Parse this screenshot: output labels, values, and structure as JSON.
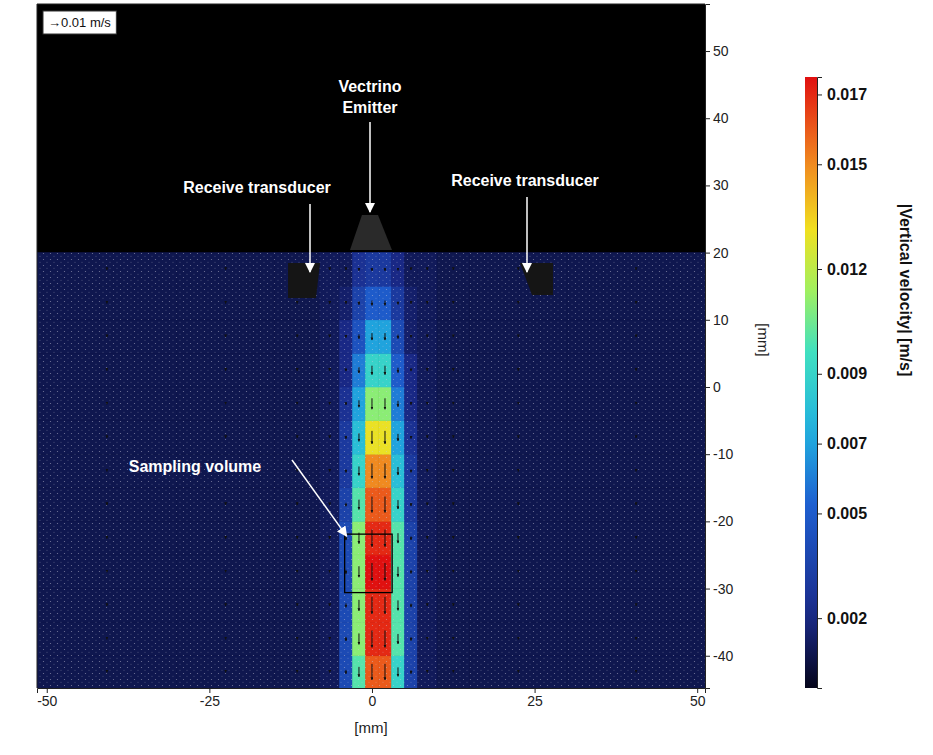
{
  "chart_data": {
    "type": "heatmap",
    "x_label": "[mm]",
    "y_label": "[mm]",
    "xlim": [
      -51.5,
      51.2
    ],
    "ylim": [
      -44.8,
      57
    ],
    "xticks": [
      -50,
      -25,
      0,
      25,
      50
    ],
    "yticks": [
      -40,
      -30,
      -20,
      -10,
      0,
      10,
      20,
      30,
      40,
      50
    ],
    "x_edges": [
      -51.5,
      -30,
      -15,
      -8,
      -5,
      -3,
      -1,
      1,
      3,
      5,
      7,
      10,
      15,
      30,
      51.2
    ],
    "y_edges": [
      -44.8,
      -40,
      -35,
      -30,
      -25,
      -20,
      -15,
      -10,
      -5,
      0,
      5,
      10,
      15,
      20,
      57
    ],
    "cells": [
      [
        0.001,
        0.001,
        0.001,
        0.0012,
        0.004,
        0.01,
        0.016,
        0.016,
        0.009,
        0.0035,
        0.0012,
        0.001,
        0.001,
        0.001
      ],
      [
        0.001,
        0.001,
        0.001,
        0.0012,
        0.004,
        0.011,
        0.017,
        0.017,
        0.01,
        0.0035,
        0.0012,
        0.001,
        0.001,
        0.001
      ],
      [
        0.001,
        0.001,
        0.001,
        0.0012,
        0.004,
        0.011,
        0.017,
        0.017,
        0.01,
        0.0035,
        0.0012,
        0.001,
        0.001,
        0.001
      ],
      [
        0.001,
        0.001,
        0.001,
        0.0012,
        0.004,
        0.011,
        0.0175,
        0.0175,
        0.01,
        0.0035,
        0.0012,
        0.001,
        0.001,
        0.001
      ],
      [
        0.001,
        0.001,
        0.001,
        0.0012,
        0.004,
        0.011,
        0.017,
        0.017,
        0.01,
        0.0035,
        0.0012,
        0.001,
        0.001,
        0.001
      ],
      [
        0.001,
        0.001,
        0.001,
        0.0012,
        0.0035,
        0.01,
        0.016,
        0.016,
        0.009,
        0.003,
        0.0012,
        0.001,
        0.001,
        0.001
      ],
      [
        0.001,
        0.001,
        0.001,
        0.0012,
        0.003,
        0.009,
        0.015,
        0.015,
        0.008,
        0.003,
        0.0012,
        0.001,
        0.001,
        0.001
      ],
      [
        0.001,
        0.001,
        0.001,
        0.0012,
        0.003,
        0.008,
        0.013,
        0.013,
        0.007,
        0.0025,
        0.0012,
        0.001,
        0.001,
        0.001
      ],
      [
        0.001,
        0.001,
        0.001,
        0.0012,
        0.0025,
        0.007,
        0.011,
        0.011,
        0.006,
        0.002,
        0.0012,
        0.001,
        0.001,
        0.001
      ],
      [
        0.001,
        0.001,
        0.001,
        0.0012,
        0.002,
        0.006,
        0.009,
        0.009,
        0.005,
        0.002,
        0.0012,
        0.001,
        0.001,
        0.001
      ],
      [
        0.001,
        0.001,
        0.001,
        0.0012,
        0.002,
        0.0045,
        0.007,
        0.007,
        0.004,
        0.0015,
        0.0012,
        0.001,
        0.001,
        0.001
      ],
      [
        0.001,
        0.001,
        0.001,
        0.0012,
        0.0015,
        0.0035,
        0.005,
        0.005,
        0.003,
        0.0015,
        0.0012,
        0.001,
        0.001,
        0.001
      ],
      [
        0.001,
        0.001,
        0.001,
        0.0012,
        0.0012,
        0.0025,
        0.003,
        0.003,
        0.002,
        0.0012,
        0.0012,
        0.001,
        0.001,
        0.001
      ],
      [
        null,
        null,
        null,
        null,
        null,
        null,
        null,
        null,
        null,
        null,
        null,
        null,
        null,
        null
      ]
    ],
    "colorbar": {
      "label": "|Vertical velocity| [m/s]",
      "range": [
        0,
        0.0175
      ],
      "ticks": [
        0.002,
        0.005,
        0.007,
        0.009,
        0.012,
        0.015,
        0.017
      ]
    },
    "vector_scale": {
      "value": 0.01,
      "label": "→0.01 m/s"
    },
    "annotations": [
      {
        "text": "Vectrino Emitter"
      },
      {
        "text": "Receive transducer"
      },
      {
        "text": "Receive transducer"
      },
      {
        "text": "Sampling volume",
        "region": {
          "x": [
            -4.2,
            3.1
          ],
          "y": [
            -30.6,
            -21.9
          ]
        }
      }
    ]
  }
}
